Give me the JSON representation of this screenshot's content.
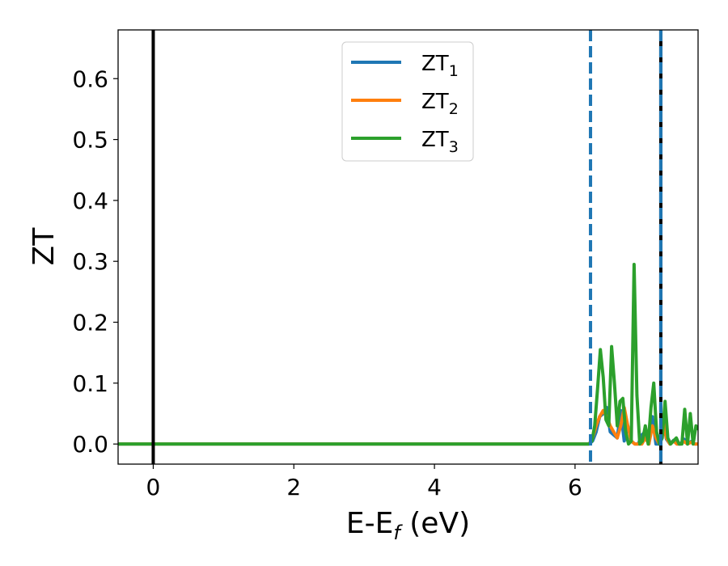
{
  "chart_data": {
    "type": "line",
    "xlabel": {
      "main": "E-E",
      "sub": "f",
      "tail": " (eV)"
    },
    "ylabel": "ZT",
    "xlim": [
      -0.5,
      7.75
    ],
    "ylim": [
      -0.033,
      0.68
    ],
    "xticks": [
      0,
      2,
      4,
      6
    ],
    "xtick_labels": [
      "0",
      "2",
      "4",
      "6"
    ],
    "yticks": [
      0.0,
      0.1,
      0.2,
      0.3,
      0.4,
      0.5,
      0.6
    ],
    "ytick_labels": [
      "0.0",
      "0.1",
      "0.2",
      "0.3",
      "0.4",
      "0.5",
      "0.6"
    ],
    "grid": false,
    "legend": {
      "position": "upper center"
    },
    "vlines": [
      {
        "x": 0.0,
        "color": "#000000",
        "style": "solid"
      },
      {
        "x": 6.22,
        "color": "#1f77b4",
        "style": "dashed"
      },
      {
        "x": 7.22,
        "color": "#000000",
        "style": "solid"
      },
      {
        "x": 7.22,
        "color": "#1f77b4",
        "style": "dashed"
      }
    ],
    "series": [
      {
        "name": "ZT",
        "sub": "1",
        "color": "#1f77b4",
        "x": [
          -0.5,
          6.2,
          6.25,
          6.3,
          6.35,
          6.4,
          6.45,
          6.5,
          6.55,
          6.6,
          6.65,
          6.7,
          6.75,
          6.8,
          6.85,
          6.9,
          6.95,
          7.0,
          7.05,
          7.1,
          7.15,
          7.2,
          7.25,
          7.3,
          7.35,
          7.4,
          7.45,
          7.5,
          7.55,
          7.6,
          7.65,
          7.7,
          7.75
        ],
        "y": [
          0.0,
          0.0,
          0.005,
          0.02,
          0.045,
          0.05,
          0.06,
          0.02,
          0.015,
          0.01,
          0.055,
          0.005,
          0.03,
          0.005,
          0.0,
          0.0,
          0.015,
          0.02,
          0.0,
          0.045,
          0.0,
          0.0,
          0.04,
          0.008,
          0.0,
          0.006,
          0.0,
          0.0,
          0.008,
          0.0,
          0.004,
          0.0,
          0.0
        ]
      },
      {
        "name": "ZT",
        "sub": "2",
        "color": "#ff7f0e",
        "x": [
          -0.5,
          6.2,
          6.25,
          6.3,
          6.35,
          6.4,
          6.45,
          6.5,
          6.55,
          6.6,
          6.65,
          6.7,
          6.75,
          6.8,
          6.85,
          6.9,
          6.95,
          7.0,
          7.05,
          7.1,
          7.15,
          7.2,
          7.25,
          7.3,
          7.35,
          7.4,
          7.45,
          7.5,
          7.55,
          7.6,
          7.65,
          7.7,
          7.75
        ],
        "y": [
          0.0,
          0.0,
          0.01,
          0.03,
          0.045,
          0.055,
          0.045,
          0.03,
          0.02,
          0.01,
          0.03,
          0.06,
          0.03,
          0.005,
          0.0,
          0.0,
          0.0,
          0.01,
          0.0,
          0.03,
          0.01,
          0.0,
          0.04,
          0.01,
          0.0,
          0.005,
          0.0,
          0.0,
          0.004,
          0.0,
          0.003,
          0.0,
          0.0
        ]
      },
      {
        "name": "ZT",
        "sub": "3",
        "color": "#2ca02c",
        "x": [
          -0.5,
          6.2,
          6.24,
          6.28,
          6.32,
          6.36,
          6.4,
          6.44,
          6.48,
          6.52,
          6.56,
          6.6,
          6.64,
          6.68,
          6.72,
          6.76,
          6.8,
          6.84,
          6.88,
          6.92,
          6.96,
          7.0,
          7.04,
          7.08,
          7.12,
          7.16,
          7.2,
          7.24,
          7.28,
          7.32,
          7.36,
          7.4,
          7.44,
          7.48,
          7.52,
          7.56,
          7.6,
          7.64,
          7.68,
          7.72,
          7.75
        ],
        "y": [
          0.0,
          0.0,
          0.005,
          0.03,
          0.09,
          0.155,
          0.11,
          0.04,
          0.03,
          0.16,
          0.1,
          0.03,
          0.07,
          0.075,
          0.02,
          0.0,
          0.005,
          0.295,
          0.08,
          0.0,
          0.005,
          0.03,
          0.0,
          0.06,
          0.1,
          0.02,
          0.0,
          0.01,
          0.07,
          0.01,
          0.0,
          0.005,
          0.01,
          0.0,
          0.0,
          0.057,
          0.0,
          0.05,
          0.0,
          0.03,
          0.025
        ]
      }
    ]
  }
}
